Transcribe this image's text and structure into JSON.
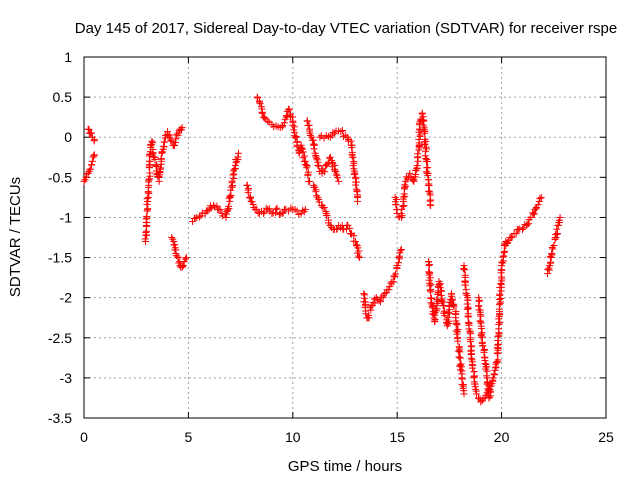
{
  "chart_data": {
    "type": "scatter",
    "title": "Day 145 of 2017, Sidereal Day-to-day VTEC variation (SDTVAR) for receiver rspe",
    "xlabel": "GPS time / hours",
    "ylabel": "SDTVAR / TECUs",
    "xlim": [
      0,
      25
    ],
    "ylim": [
      -3.5,
      1
    ],
    "xticks": [
      0,
      5,
      10,
      15,
      20,
      25
    ],
    "yticks": [
      -3.5,
      -3,
      -2.5,
      -2,
      -1.5,
      -1,
      -0.5,
      0,
      0.5,
      1
    ],
    "xtick_labels": [
      "0",
      "5",
      "10",
      "15",
      "20",
      "25"
    ],
    "ytick_labels": [
      "-3.5",
      "-3",
      "-2.5",
      "-2",
      "-1.5",
      "-1",
      "-0.5",
      "0",
      "0.5",
      "1"
    ],
    "grid": true,
    "marker": "+",
    "color": "#ff0000",
    "series": [
      {
        "name": "SDTVAR",
        "segments": [
          [
            [
              0.0,
              -0.55
            ],
            [
              0.1,
              -0.5
            ],
            [
              0.2,
              -0.45
            ],
            [
              0.3,
              -0.4
            ],
            [
              0.4,
              -0.3
            ],
            [
              0.5,
              -0.22
            ]
          ],
          [
            [
              0.2,
              0.1
            ],
            [
              0.25,
              0.05
            ],
            [
              0.35,
              0.05
            ],
            [
              0.4,
              0.0
            ],
            [
              0.5,
              -0.03
            ]
          ],
          [
            [
              2.95,
              -1.3
            ],
            [
              3.0,
              -1.1
            ],
            [
              3.05,
              -0.8
            ],
            [
              3.1,
              -0.6
            ],
            [
              3.15,
              -0.3
            ],
            [
              3.2,
              -0.1
            ],
            [
              3.25,
              -0.05
            ],
            [
              3.3,
              -0.2
            ],
            [
              3.4,
              -0.25
            ],
            [
              3.5,
              -0.45
            ],
            [
              3.6,
              -0.55
            ],
            [
              3.7,
              -0.3
            ],
            [
              3.8,
              -0.15
            ],
            [
              3.9,
              0.02
            ],
            [
              4.0,
              0.07
            ],
            [
              4.1,
              0.0
            ],
            [
              4.2,
              -0.05
            ],
            [
              4.3,
              -0.1
            ],
            [
              4.4,
              -0.02
            ],
            [
              4.5,
              0.05
            ],
            [
              4.6,
              0.1
            ],
            [
              4.7,
              0.12
            ]
          ],
          [
            [
              4.2,
              -1.25
            ],
            [
              4.3,
              -1.3
            ],
            [
              4.4,
              -1.45
            ],
            [
              4.5,
              -1.5
            ],
            [
              4.6,
              -1.6
            ],
            [
              4.7,
              -1.62
            ],
            [
              4.8,
              -1.55
            ],
            [
              4.9,
              -1.5
            ]
          ],
          [
            [
              5.2,
              -1.05
            ],
            [
              5.4,
              -1.0
            ],
            [
              5.6,
              -0.98
            ],
            [
              5.8,
              -0.95
            ],
            [
              6.0,
              -0.9
            ],
            [
              6.2,
              -0.85
            ],
            [
              6.4,
              -0.9
            ],
            [
              6.6,
              -0.95
            ],
            [
              6.8,
              -1.0
            ],
            [
              7.0,
              -0.75
            ],
            [
              7.2,
              -0.4
            ],
            [
              7.4,
              -0.2
            ]
          ],
          [
            [
              7.8,
              -0.6
            ],
            [
              8.0,
              -0.8
            ],
            [
              8.2,
              -0.9
            ],
            [
              8.4,
              -0.95
            ],
            [
              8.6,
              -0.95
            ],
            [
              8.8,
              -0.9
            ],
            [
              9.0,
              -0.95
            ],
            [
              9.2,
              -0.9
            ],
            [
              9.4,
              -0.95
            ],
            [
              9.6,
              -0.9
            ],
            [
              9.8,
              -0.92
            ],
            [
              10.0,
              -0.9
            ],
            [
              10.2,
              -0.92
            ],
            [
              10.4,
              -0.95
            ],
            [
              10.6,
              -0.9
            ]
          ],
          [
            [
              8.3,
              0.5
            ],
            [
              8.4,
              0.45
            ],
            [
              8.5,
              0.38
            ],
            [
              8.6,
              0.25
            ],
            [
              8.8,
              0.2
            ],
            [
              9.0,
              0.16
            ],
            [
              9.2,
              0.14
            ],
            [
              9.4,
              0.12
            ],
            [
              9.6,
              0.18
            ],
            [
              9.8,
              0.35
            ],
            [
              10.0,
              0.2
            ],
            [
              10.2,
              -0.1
            ],
            [
              10.3,
              -0.2
            ],
            [
              10.4,
              -0.1
            ],
            [
              10.6,
              -0.3
            ],
            [
              10.8,
              -0.55
            ]
          ],
          [
            [
              10.7,
              0.2
            ],
            [
              10.8,
              0.1
            ],
            [
              10.9,
              0.0
            ],
            [
              11.0,
              -0.1
            ],
            [
              11.2,
              -0.35
            ],
            [
              11.4,
              -0.45
            ],
            [
              11.6,
              -0.35
            ],
            [
              11.8,
              -0.25
            ],
            [
              12.0,
              -0.4
            ],
            [
              12.2,
              -0.55
            ]
          ],
          [
            [
              11.0,
              -0.6
            ],
            [
              11.2,
              -0.75
            ],
            [
              11.4,
              -0.85
            ],
            [
              11.6,
              -0.95
            ],
            [
              11.8,
              -1.1
            ],
            [
              12.0,
              -1.15
            ],
            [
              12.2,
              -1.1
            ],
            [
              12.4,
              -1.15
            ],
            [
              12.6,
              -1.1
            ],
            [
              12.8,
              -1.2
            ],
            [
              13.0,
              -1.3
            ],
            [
              13.2,
              -1.5
            ]
          ],
          [
            [
              11.3,
              0.0
            ],
            [
              11.6,
              0.02
            ],
            [
              11.8,
              0.0
            ],
            [
              12.0,
              0.05
            ],
            [
              12.3,
              0.07
            ],
            [
              12.6,
              0.0
            ],
            [
              12.8,
              -0.1
            ],
            [
              13.0,
              -0.5
            ],
            [
              13.1,
              -0.8
            ]
          ],
          [
            [
              13.4,
              -1.95
            ],
            [
              13.5,
              -2.2
            ],
            [
              13.6,
              -2.25
            ],
            [
              13.8,
              -2.1
            ],
            [
              14.0,
              -2.0
            ],
            [
              14.2,
              -2.05
            ],
            [
              14.4,
              -1.95
            ],
            [
              14.6,
              -1.9
            ],
            [
              14.8,
              -1.8
            ],
            [
              15.0,
              -1.6
            ],
            [
              15.2,
              -1.4
            ]
          ],
          [
            [
              14.9,
              -0.75
            ],
            [
              15.0,
              -0.95
            ],
            [
              15.2,
              -1.0
            ],
            [
              15.3,
              -0.8
            ],
            [
              15.4,
              -0.55
            ],
            [
              15.6,
              -0.45
            ],
            [
              15.8,
              -0.55
            ],
            [
              16.0,
              -0.3
            ],
            [
              16.1,
              0.2
            ],
            [
              16.2,
              0.3
            ],
            [
              16.3,
              0.1
            ],
            [
              16.4,
              -0.3
            ],
            [
              16.5,
              -0.6
            ],
            [
              16.6,
              -0.85
            ]
          ],
          [
            [
              16.5,
              -1.55
            ],
            [
              16.6,
              -1.9
            ],
            [
              16.7,
              -2.2
            ],
            [
              16.8,
              -2.3
            ],
            [
              16.9,
              -2.1
            ],
            [
              17.0,
              -1.8
            ],
            [
              17.2,
              -2.1
            ],
            [
              17.4,
              -2.35
            ],
            [
              17.5,
              -2.15
            ],
            [
              17.6,
              -1.95
            ],
            [
              17.8,
              -2.2
            ],
            [
              17.9,
              -2.5
            ],
            [
              18.0,
              -2.75
            ],
            [
              18.1,
              -3.0
            ],
            [
              18.2,
              -3.2
            ]
          ],
          [
            [
              18.2,
              -1.6
            ],
            [
              18.3,
              -1.9
            ],
            [
              18.4,
              -2.2
            ],
            [
              18.5,
              -2.5
            ],
            [
              18.6,
              -2.8
            ],
            [
              18.7,
              -3.05
            ],
            [
              18.8,
              -3.2
            ],
            [
              19.0,
              -3.3
            ],
            [
              19.2,
              -3.25
            ],
            [
              19.4,
              -3.15
            ],
            [
              19.6,
              -3.0
            ],
            [
              19.8,
              -2.8
            ],
            [
              19.9,
              -2.2
            ],
            [
              20.0,
              -1.6
            ],
            [
              20.2,
              -1.3
            ]
          ],
          [
            [
              18.9,
              -2.0
            ],
            [
              19.0,
              -2.3
            ],
            [
              19.1,
              -2.6
            ],
            [
              19.2,
              -2.75
            ],
            [
              19.3,
              -3.0
            ],
            [
              19.4,
              -3.25
            ],
            [
              19.5,
              -3.1
            ]
          ],
          [
            [
              20.2,
              -1.35
            ],
            [
              20.4,
              -1.25
            ],
            [
              20.6,
              -1.2
            ],
            [
              20.8,
              -1.15
            ],
            [
              21.0,
              -1.15
            ],
            [
              21.2,
              -1.1
            ],
            [
              21.4,
              -1.0
            ],
            [
              21.6,
              -0.9
            ],
            [
              21.8,
              -0.8
            ],
            [
              21.9,
              -0.75
            ]
          ],
          [
            [
              22.2,
              -1.7
            ],
            [
              22.3,
              -1.6
            ],
            [
              22.4,
              -1.45
            ],
            [
              22.5,
              -1.35
            ],
            [
              22.6,
              -1.25
            ],
            [
              22.7,
              -1.1
            ],
            [
              22.8,
              -1.0
            ]
          ]
        ]
      }
    ]
  }
}
